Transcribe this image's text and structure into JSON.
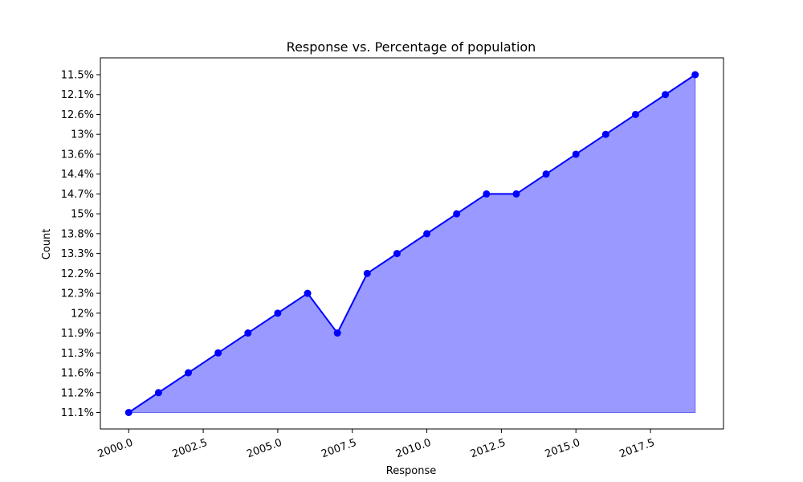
{
  "chart_data": {
    "type": "area",
    "title": "Response vs. Percentage of population",
    "xlabel": "Response",
    "ylabel": "Count",
    "x": [
      2000,
      2001,
      2002,
      2003,
      2004,
      2005,
      2006,
      2007,
      2008,
      2009,
      2010,
      2011,
      2012,
      2013,
      2014,
      2015,
      2016,
      2017,
      2018,
      2019
    ],
    "y": [
      "11.1%",
      "11.2%",
      "11.6%",
      "11.3%",
      "11.9%",
      "12%",
      "12.3%",
      "11.9%",
      "12.2%",
      "13.3%",
      "13.8%",
      "15%",
      "14.7%",
      "14.7%",
      "14.4%",
      "13.6%",
      "13%",
      "12.6%",
      "12.1%",
      "11.5%"
    ],
    "y_categories": [
      "11.1%",
      "11.2%",
      "11.6%",
      "11.3%",
      "11.9%",
      "12%",
      "12.3%",
      "12.2%",
      "13.3%",
      "13.8%",
      "15%",
      "14.7%",
      "14.4%",
      "13.6%",
      "13%",
      "12.6%",
      "12.1%",
      "11.5%"
    ],
    "x_ticks": [
      "2000.0",
      "2002.5",
      "2005.0",
      "2007.5",
      "2010.0",
      "2012.5",
      "2015.0",
      "2017.5"
    ],
    "x_tick_values": [
      2000,
      2002.5,
      2005,
      2007.5,
      2010,
      2012.5,
      2015,
      2017.5
    ],
    "xlim": [
      1999.05,
      2019.95
    ],
    "grid": false,
    "colors": {
      "line": "#0000ff",
      "marker": "#0000ff",
      "fill": "#9999ff"
    }
  }
}
